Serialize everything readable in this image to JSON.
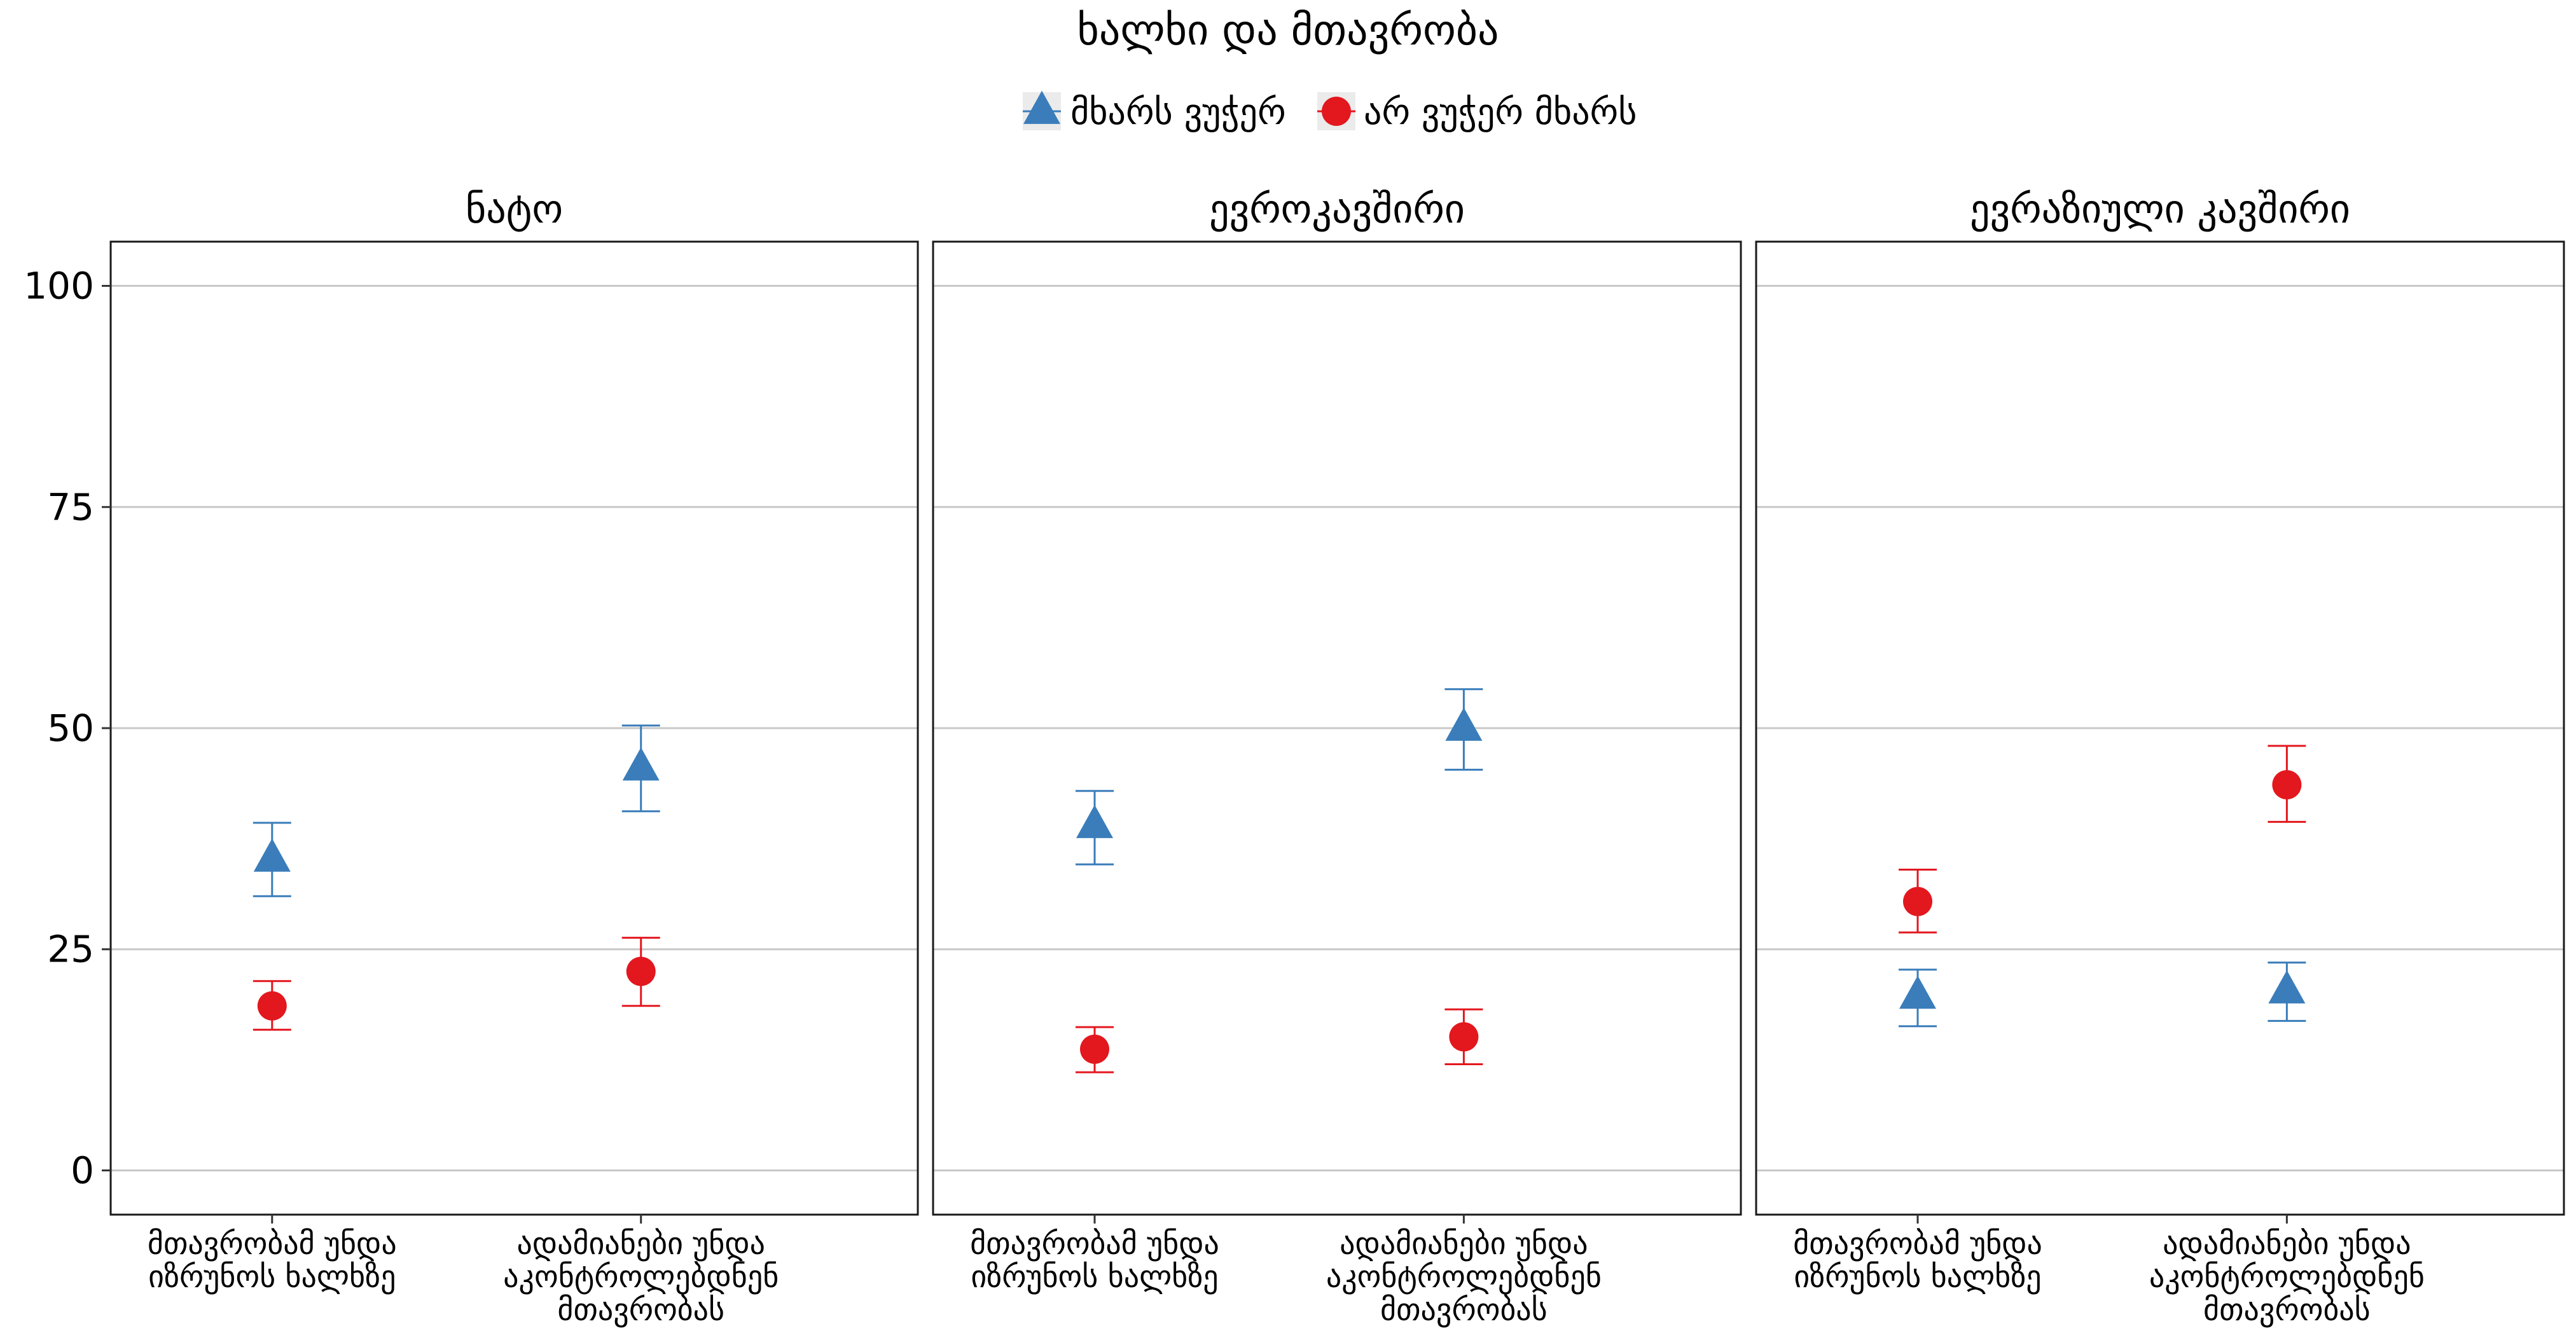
{
  "chart_data": {
    "type": "scatter",
    "title": "ხალხი და მთავრობა",
    "legend": {
      "position": "top-center",
      "entries": [
        {
          "name": "მხარს ვუჭერ",
          "shape": "triangle",
          "color": "#3A7DBA"
        },
        {
          "name": "არ ვუჭერ მხარს",
          "shape": "circle",
          "color": "#E3171E"
        }
      ]
    },
    "y_axis": {
      "ylim": [
        -5,
        105
      ],
      "ticks": [
        0,
        25,
        50,
        75,
        100
      ],
      "tick_labels": [
        "0",
        "25",
        "50",
        "75",
        "100"
      ],
      "grid": true
    },
    "categories": [
      [
        "მთავრობამ უნდა",
        "იზრუნოს ხალხზე"
      ],
      [
        "ადამიანები უნდა",
        "აკონტროლებდნენ",
        "მთავრობას"
      ]
    ],
    "panels": [
      {
        "title": "ნატო",
        "series": [
          {
            "name": "მხარს ვუჭერ",
            "values": [
              35.2,
              45.5
            ],
            "lower": [
              31.0,
              40.6
            ],
            "upper": [
              39.3,
              50.3
            ]
          },
          {
            "name": "არ ვუჭერ მხარს",
            "values": [
              18.6,
              22.5
            ],
            "lower": [
              15.9,
              18.6
            ],
            "upper": [
              21.4,
              26.3
            ]
          }
        ]
      },
      {
        "title": "ევროკავშირი",
        "series": [
          {
            "name": "მხარს ვუჭერ",
            "values": [
              39.0,
              50.0
            ],
            "lower": [
              34.6,
              45.3
            ],
            "upper": [
              42.9,
              54.4
            ]
          },
          {
            "name": "არ ვუჭერ მხარს",
            "values": [
              13.7,
              15.1
            ],
            "lower": [
              11.1,
              12.0
            ],
            "upper": [
              16.2,
              18.2
            ]
          }
        ]
      },
      {
        "title": "ევრაზიული კავშირი",
        "series": [
          {
            "name": "მხარს ვუჭერ",
            "values": [
              19.7,
              20.3
            ],
            "lower": [
              16.3,
              16.9
            ],
            "upper": [
              22.7,
              23.5
            ]
          },
          {
            "name": "არ ვუჭერ მხარს",
            "values": [
              30.4,
              43.6
            ],
            "lower": [
              26.9,
              39.4
            ],
            "upper": [
              34.0,
              48.0
            ]
          }
        ]
      }
    ]
  }
}
